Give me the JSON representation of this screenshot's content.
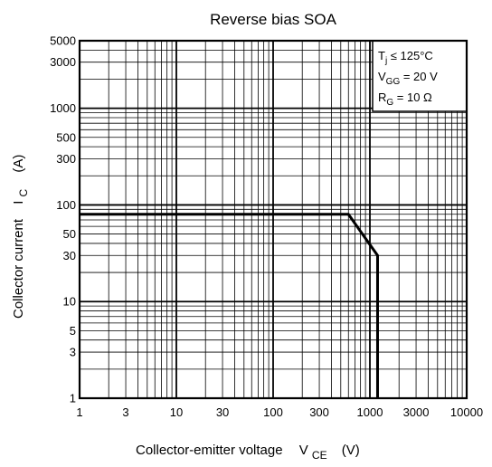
{
  "chart_data": {
    "type": "line",
    "title": "Reverse bias SOA",
    "x_axis": {
      "label_main": "Collector-emitter voltage",
      "label_symbol": "V",
      "label_subscript": "CE",
      "unit": "(V)",
      "scale": "log",
      "range": [
        1,
        10000
      ],
      "tick_values": [
        1,
        3,
        10,
        30,
        100,
        300,
        1000,
        3000,
        10000
      ],
      "tick_labels": [
        "1",
        "3",
        "10",
        "30",
        "100",
        "300",
        "1000",
        "3000",
        "10000"
      ]
    },
    "y_axis": {
      "label_main": "Collector current",
      "label_symbol": "I",
      "label_subscript": "C",
      "unit": "(A)",
      "scale": "log",
      "range": [
        1,
        5000
      ],
      "tick_values": [
        1,
        3,
        5,
        10,
        30,
        50,
        100,
        300,
        500,
        1000,
        3000,
        5000
      ],
      "tick_labels": [
        "1",
        "3",
        "5",
        "10",
        "30",
        "50",
        "100",
        "300",
        "500",
        "1000",
        "3000",
        "5000"
      ]
    },
    "grid": true,
    "series": [
      {
        "x": [
          1,
          600,
          1200,
          1200
        ],
        "y": [
          80,
          80,
          30,
          1
        ]
      }
    ],
    "conditions": [
      {
        "symbol": "T",
        "sub": "j",
        "rest": " ≤ 125°C"
      },
      {
        "symbol": "V",
        "sub": "GG",
        "rest": " = 20 V"
      },
      {
        "symbol": "R",
        "sub": "G",
        "rest": " = 10 Ω"
      }
    ],
    "conditions_position": "top-right",
    "colors": {
      "line": "#000000",
      "grid": "#000000",
      "background": "#ffffff"
    }
  }
}
